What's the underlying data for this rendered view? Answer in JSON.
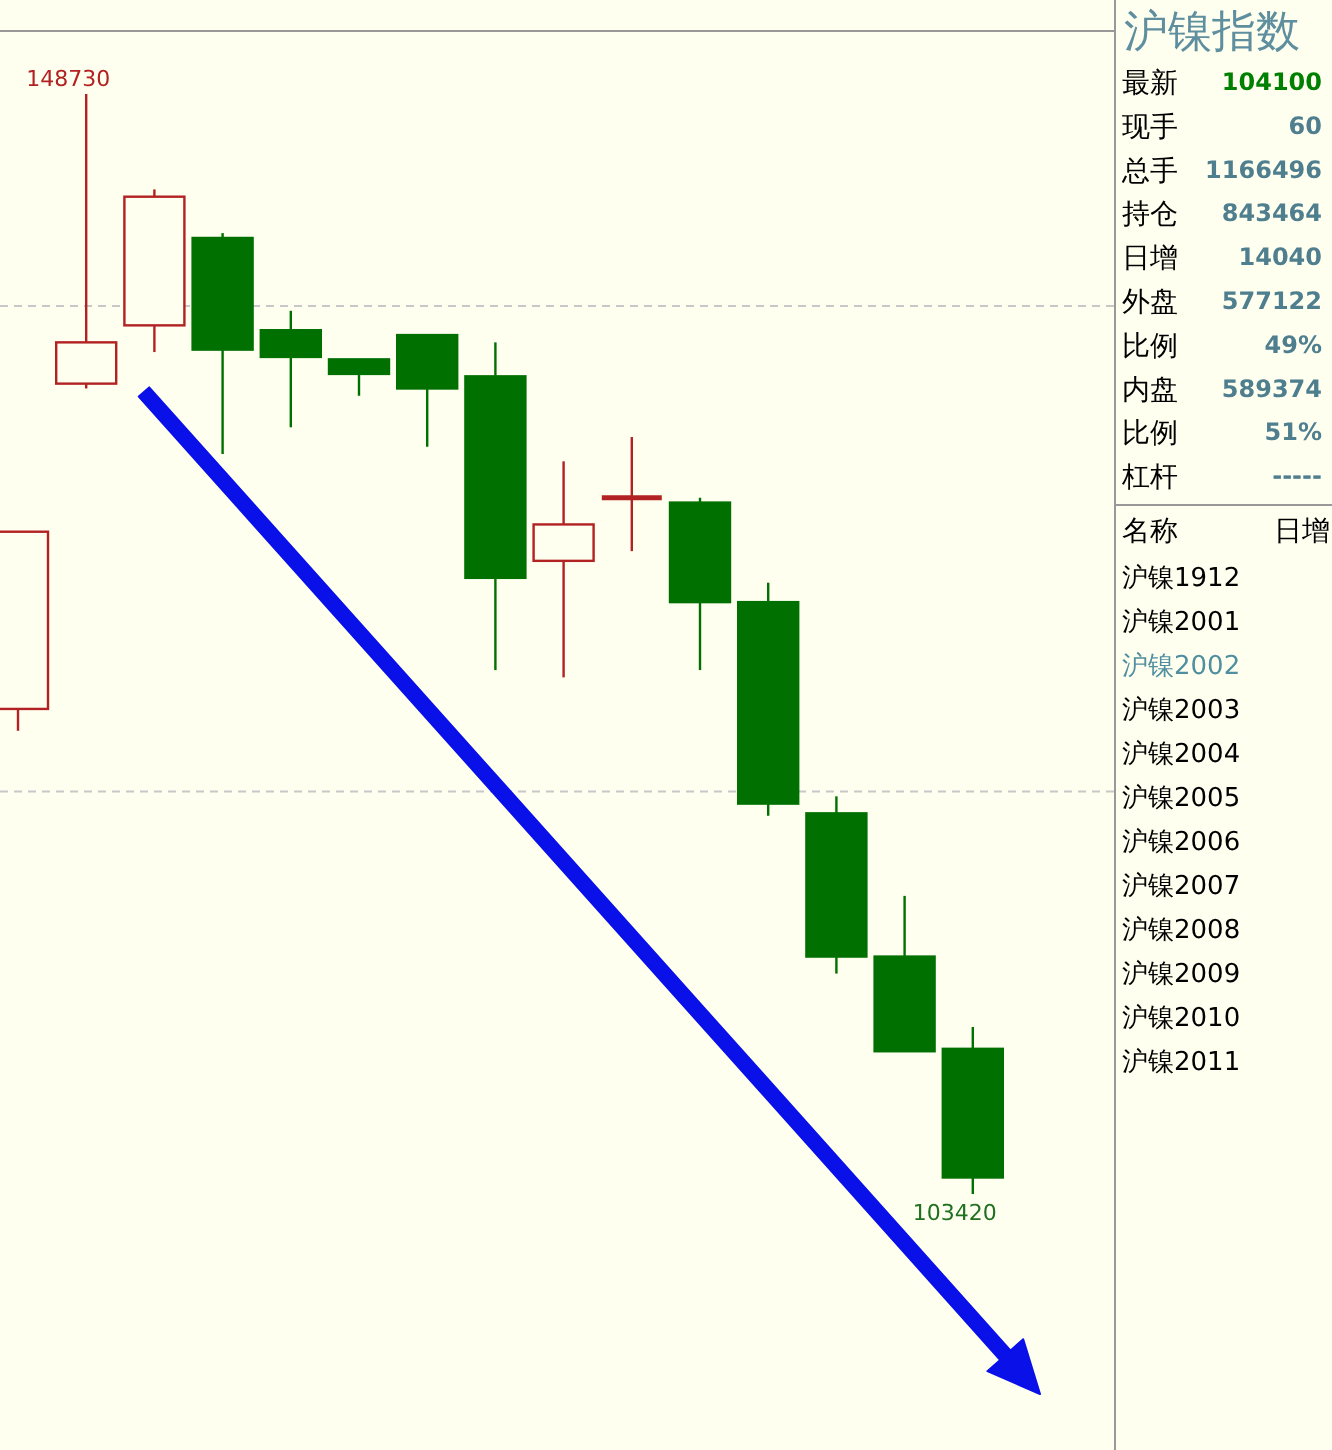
{
  "chart_data": [
    {
      "type": "candlestick",
      "categories": [
        null,
        null,
        null,
        null,
        null,
        null,
        null,
        null,
        null,
        null,
        null,
        null,
        null,
        null,
        null
      ],
      "ohlc": [
        [
          123400,
          130700,
          122500,
          130700
        ],
        [
          136800,
          148730,
          136600,
          138500
        ],
        [
          139200,
          144800,
          138100,
          144500
        ],
        [
          142800,
          143000,
          133900,
          138200
        ],
        [
          139000,
          139800,
          135000,
          137900
        ],
        [
          137800,
          137800,
          136300,
          137200
        ],
        [
          138800,
          138800,
          134200,
          136600
        ],
        [
          137100,
          138500,
          125000,
          128800
        ],
        [
          129500,
          133600,
          124700,
          131000
        ],
        [
          132100,
          134600,
          129900,
          132100
        ],
        [
          131900,
          132100,
          125000,
          127800
        ],
        [
          127800,
          128600,
          119000,
          119500
        ],
        [
          119100,
          119800,
          112500,
          113200
        ],
        [
          113200,
          115700,
          109300,
          109300
        ],
        [
          109400,
          110300,
          103420,
          104100
        ]
      ],
      "colors": [
        "#b22222",
        "#b22222",
        "#b22222",
        "#007000",
        "#007000",
        "#007000",
        "#007000",
        "#007000",
        "#b22222",
        "#b22222",
        "#007000",
        "#007000",
        "#007000",
        "#007000",
        "#007000"
      ],
      "ref_lines": [
        {
          "axis": "y",
          "value": 140000,
          "line_style": "dashed",
          "color": "#c8c8c8"
        },
        {
          "axis": "y",
          "value": 120000,
          "line_style": "dashed",
          "color": "#c8c8c8"
        }
      ],
      "annotations": [
        "148730",
        "103420"
      ]
    },
    {
      "type": "other",
      "title": "沪镍指数",
      "categories": [
        "最新",
        "现手",
        "总手",
        "持仓",
        "日增",
        "外盘",
        "比例",
        "内盘",
        "比例",
        "杠杆"
      ],
      "value_labels": [
        "104100",
        "60",
        "1166496",
        "843464",
        "14040",
        "577122",
        "49%",
        "589374",
        "51%",
        "-----"
      ],
      "colors": [
        "#008000",
        "#4f7f8f",
        "#4f7f8f",
        "#4f7f8f",
        "#4f7f8f",
        "#4f7f8f",
        "#4f7f8f",
        "#4f7f8f",
        "#4f7f8f",
        "#4f7f8f"
      ]
    },
    {
      "type": "other",
      "annotations": [
        "名称",
        "日增"
      ],
      "categories": [
        "沪镍1912",
        "沪镍2001",
        "沪镍2002",
        "沪镍2003",
        "沪镍2004",
        "沪镍2005",
        "沪镍2006",
        "沪镍2007",
        "沪镍2008",
        "沪镍2009",
        "沪镍2010",
        "沪镍2011"
      ],
      "colors": [
        "#000000",
        "#000000",
        "#4f8f9f",
        "#000000",
        "#000000",
        "#000000",
        "#000000",
        "#000000",
        "#000000",
        "#000000",
        "#000000",
        "#000000"
      ]
    }
  ]
}
